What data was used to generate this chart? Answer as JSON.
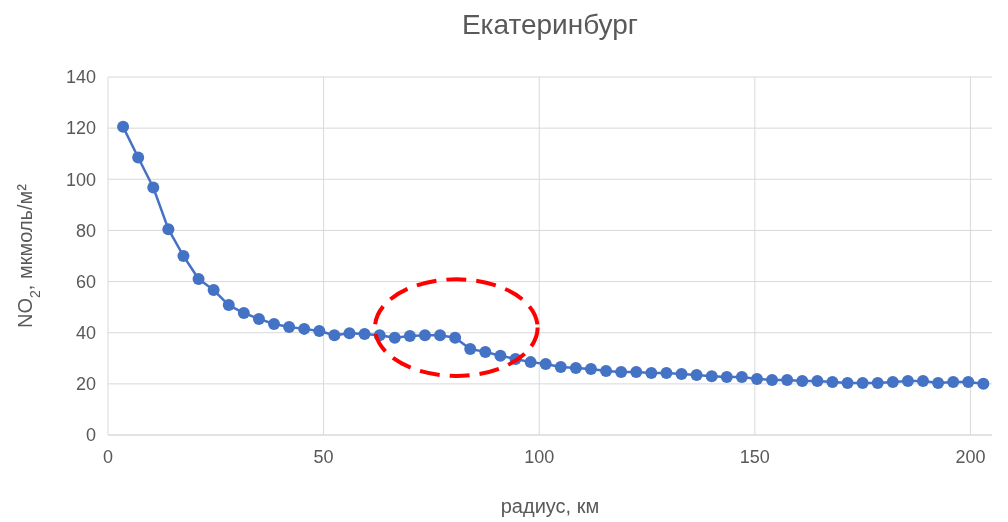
{
  "chart_data": {
    "type": "line",
    "title": "Екатеринбург",
    "xlabel": "радиус, км",
    "ylabel": "NO$_{2}$, мкмоль/м²",
    "x": [
      3.5,
      7,
      10.5,
      14,
      17.5,
      21,
      24.5,
      28,
      31.5,
      35,
      38.5,
      42,
      45.5,
      49,
      52.5,
      56,
      59.5,
      63,
      66.5,
      70,
      73.5,
      77,
      80.5,
      84,
      87.5,
      91,
      94.5,
      98,
      101.5,
      105,
      108.5,
      112,
      115.5,
      119,
      122.5,
      126,
      129.5,
      133,
      136.5,
      140,
      143.5,
      147,
      150.5,
      154,
      157.5,
      161,
      164.5,
      168,
      171.5,
      175,
      178.5,
      182,
      185.5,
      189,
      192.5,
      196,
      199.5,
      203
    ],
    "series": [
      {
        "color": "#4472c4",
        "values": [
          120.5,
          108.5,
          96.8,
          80.5,
          70,
          61,
          56.7,
          50.8,
          47.7,
          45.4,
          43.4,
          42.2,
          41.5,
          40.7,
          39,
          39.8,
          39.5,
          39,
          38,
          38.7,
          39,
          39,
          38,
          33.6,
          32.5,
          31,
          29.7,
          28.5,
          27.8,
          26.6,
          26.2,
          25.8,
          25,
          24.6,
          24.6,
          24.2,
          24.2,
          23.9,
          23.5,
          23,
          22.7,
          22.7,
          21.9,
          21.5,
          21.5,
          21.1,
          21.1,
          20.7,
          20.3,
          20.3,
          20.3,
          20.7,
          21.1,
          21.1,
          20.3,
          20.7,
          20.7,
          20
        ]
      }
    ],
    "xlim": [
      0,
      205
    ],
    "xticks": [
      0,
      50,
      100,
      150,
      200
    ],
    "ylim": [
      0,
      140
    ],
    "yticks": [
      0,
      20,
      40,
      60,
      80,
      100,
      120,
      140
    ],
    "grid": true,
    "marker": "circle",
    "line_style": "solid"
  }
}
